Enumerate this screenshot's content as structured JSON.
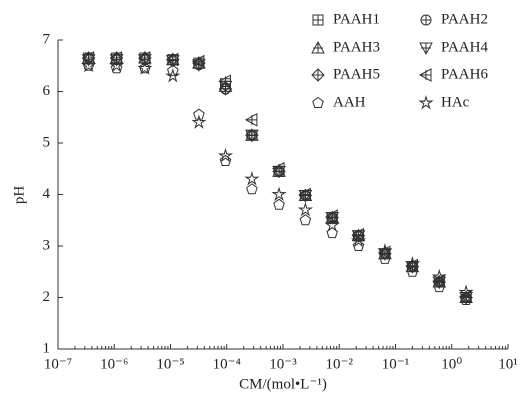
{
  "chart_data": {
    "type": "scatter",
    "x_label": "CM/(mol•L⁻¹)",
    "y_label": "pH",
    "log_x": true,
    "xlim": [
      1e-07,
      10
    ],
    "ylim": [
      1,
      7
    ],
    "xticks": [
      {
        "value": 1e-07,
        "label": "10⁻⁷"
      },
      {
        "value": 1e-06,
        "label": "10⁻⁶"
      },
      {
        "value": 1e-05,
        "label": "10⁻⁵"
      },
      {
        "value": 0.0001,
        "label": "10⁻⁴"
      },
      {
        "value": 0.001,
        "label": "10⁻³"
      },
      {
        "value": 0.01,
        "label": "10⁻²"
      },
      {
        "value": 0.1,
        "label": "10⁻¹"
      },
      {
        "value": 1,
        "label": "10⁰"
      },
      {
        "value": 10,
        "label": "10¹"
      }
    ],
    "yticks": [
      1,
      2,
      3,
      4,
      5,
      6,
      7
    ],
    "legend_position": "upper right",
    "x": [
      3.5e-07,
      1.1e-06,
      3.5e-06,
      1.1e-05,
      3.2e-05,
      9.5e-05,
      0.00028,
      0.00085,
      0.0025,
      0.0075,
      0.022,
      0.065,
      0.2,
      0.6,
      1.8
    ],
    "series": [
      {
        "name": "PAAH1",
        "marker": "square-plus",
        "color": "#333333",
        "values": [
          6.65,
          6.65,
          6.65,
          6.62,
          6.55,
          6.15,
          5.15,
          4.45,
          3.98,
          3.55,
          3.2,
          2.85,
          2.6,
          2.3,
          2.0
        ]
      },
      {
        "name": "PAAH2",
        "marker": "circle-plus",
        "color": "#333333",
        "values": [
          6.65,
          6.62,
          6.62,
          6.6,
          6.52,
          6.05,
          5.15,
          4.45,
          3.98,
          3.55,
          3.2,
          2.85,
          2.6,
          2.3,
          2.0
        ]
      },
      {
        "name": "PAAH3",
        "marker": "triangle-up",
        "color": "#333333",
        "values": [
          6.65,
          6.65,
          6.65,
          6.62,
          6.55,
          6.1,
          5.15,
          4.45,
          3.98,
          3.55,
          3.2,
          2.85,
          2.6,
          2.3,
          2.0
        ]
      },
      {
        "name": "PAAH4",
        "marker": "triangle-down",
        "color": "#333333",
        "values": [
          6.62,
          6.62,
          6.62,
          6.6,
          6.52,
          6.1,
          5.15,
          4.45,
          3.98,
          3.55,
          3.2,
          2.85,
          2.6,
          2.3,
          2.0
        ]
      },
      {
        "name": "PAAH5",
        "marker": "diamond-plus",
        "color": "#333333",
        "values": [
          6.65,
          6.65,
          6.65,
          6.62,
          6.55,
          6.05,
          5.15,
          4.45,
          3.98,
          3.55,
          3.2,
          2.85,
          2.6,
          2.3,
          2.0
        ]
      },
      {
        "name": "PAAH6",
        "marker": "triangle-left",
        "color": "#333333",
        "values": [
          6.65,
          6.65,
          6.65,
          6.62,
          6.58,
          6.2,
          5.45,
          4.5,
          4.0,
          3.58,
          3.22,
          2.88,
          2.62,
          2.32,
          2.02
        ]
      },
      {
        "name": "AAH",
        "marker": "pentagon",
        "color": "#333333",
        "values": [
          6.5,
          6.45,
          6.45,
          6.4,
          5.55,
          4.65,
          4.1,
          3.8,
          3.5,
          3.25,
          3.0,
          2.75,
          2.5,
          2.2,
          1.95
        ]
      },
      {
        "name": "HAc",
        "marker": "star",
        "color": "#333333",
        "values": [
          6.5,
          6.5,
          6.45,
          6.3,
          5.4,
          4.75,
          4.3,
          4.0,
          3.7,
          3.4,
          3.1,
          2.9,
          2.65,
          2.4,
          2.1
        ]
      }
    ]
  }
}
